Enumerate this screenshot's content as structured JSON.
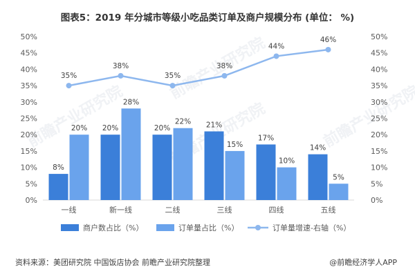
{
  "title": "图表5：2019 年分城市等级小吃品类订单及商户规模分布 (单位： %)",
  "footer": {
    "source": "资料来源：美团研究院 中国饭店协会 前瞻产业研究院整理",
    "brand": "@前瞻经济学人APP"
  },
  "watermark": "前瞻产业研究院",
  "colors": {
    "merchant": "#3b7fd9",
    "order": "#6aa3ec",
    "growth": "#8db7ee",
    "axis": "#d9d9d9"
  },
  "chart_data": {
    "type": "bar",
    "categories": [
      "一线",
      "新一线",
      "二线",
      "三线",
      "四线",
      "五线"
    ],
    "series": [
      {
        "name": "商户数占比（%）",
        "type": "bar",
        "values": [
          8,
          20,
          20,
          21,
          17,
          14
        ],
        "labels": [
          "8%",
          "20%",
          "20%",
          "21%",
          "17%",
          "14%"
        ]
      },
      {
        "name": "订单量占比（%）",
        "type": "bar",
        "values": [
          20,
          28,
          22,
          15,
          10,
          5
        ],
        "labels": [
          "20%",
          "28%",
          "22%",
          "15%",
          "10%",
          "5%"
        ]
      },
      {
        "name": "订单量增速-右轴（%）",
        "type": "line",
        "axis": "right",
        "values": [
          35,
          38,
          35,
          38,
          44,
          46
        ],
        "labels": [
          "35%",
          "38%",
          "35%",
          "38%",
          "44%",
          "46%"
        ]
      }
    ],
    "ylim": [
      0,
      50
    ],
    "y2lim": [
      0,
      50
    ],
    "yticks": [
      "0%",
      "5%",
      "10%",
      "15%",
      "20%",
      "25%",
      "30%",
      "35%",
      "40%",
      "45%",
      "50%"
    ],
    "legend": "bottom",
    "grid": false
  }
}
